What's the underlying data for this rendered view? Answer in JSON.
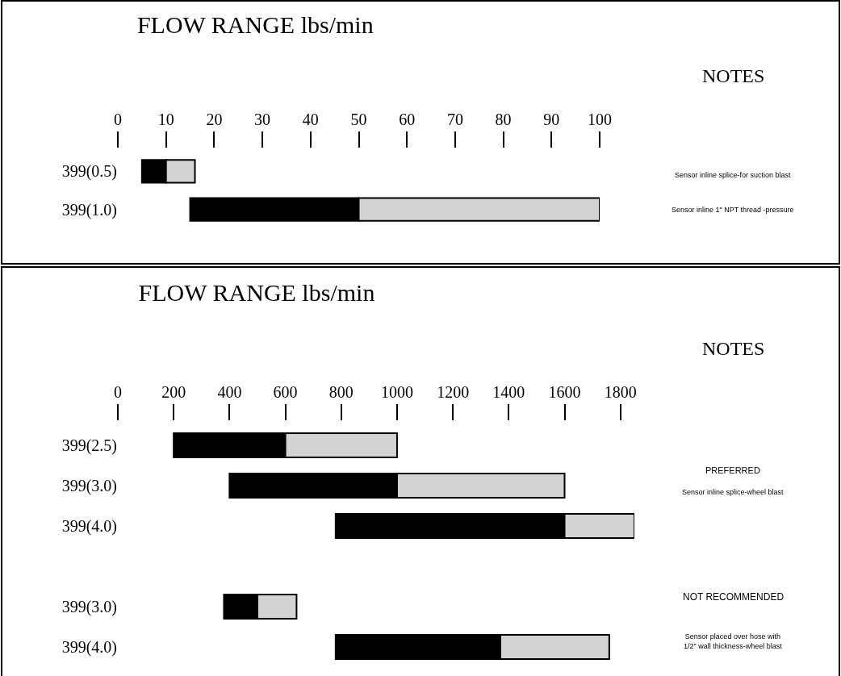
{
  "chart_data": [
    {
      "type": "bar",
      "orientation": "horizontal",
      "title": "FLOW RANGE lbs/min",
      "categories": [
        "399(0.5)",
        "399(1.0)"
      ],
      "series": [
        {
          "color": "#000000",
          "base": [
            5,
            15
          ],
          "values": [
            5,
            35
          ]
        },
        {
          "color": "#d3d3d3",
          "base": [
            10,
            50
          ],
          "values": [
            6,
            50
          ]
        }
      ],
      "xlim": [
        0,
        100
      ],
      "xticks": [
        0,
        10,
        20,
        30,
        40,
        50,
        60,
        70,
        80,
        90,
        100
      ],
      "grid": false,
      "annotations": [
        "NOTES",
        "Sensor inline splice-for suction blast",
        "Sensor inline 1\" NPT thread -pressure"
      ]
    },
    {
      "type": "bar",
      "orientation": "horizontal",
      "title": "FLOW RANGE lbs/min",
      "categories": [
        "399(2.5)",
        "399(3.0)",
        "399(4.0)",
        null,
        "399(3.0)",
        "399(4.0)"
      ],
      "series": [
        {
          "color": "#000000",
          "base": [
            200,
            400,
            780,
            null,
            380,
            780
          ],
          "values": [
            400,
            600,
            820,
            null,
            120,
            590
          ]
        },
        {
          "color": "#d3d3d3",
          "base": [
            600,
            1000,
            1600,
            null,
            500,
            1370
          ],
          "values": [
            400,
            600,
            250,
            null,
            140,
            390
          ]
        }
      ],
      "xlim": [
        0,
        1850
      ],
      "xticks": [
        0,
        200,
        400,
        600,
        800,
        1000,
        1200,
        1400,
        1600,
        1800
      ],
      "grid": false,
      "annotations": [
        "NOTES",
        "PREFERRED",
        "Sensor inline splice-wheel blast",
        "NOT RECOMMENDED",
        "Sensor placed over hose with\n1/2\" wall thickness-wheel blast"
      ]
    }
  ]
}
